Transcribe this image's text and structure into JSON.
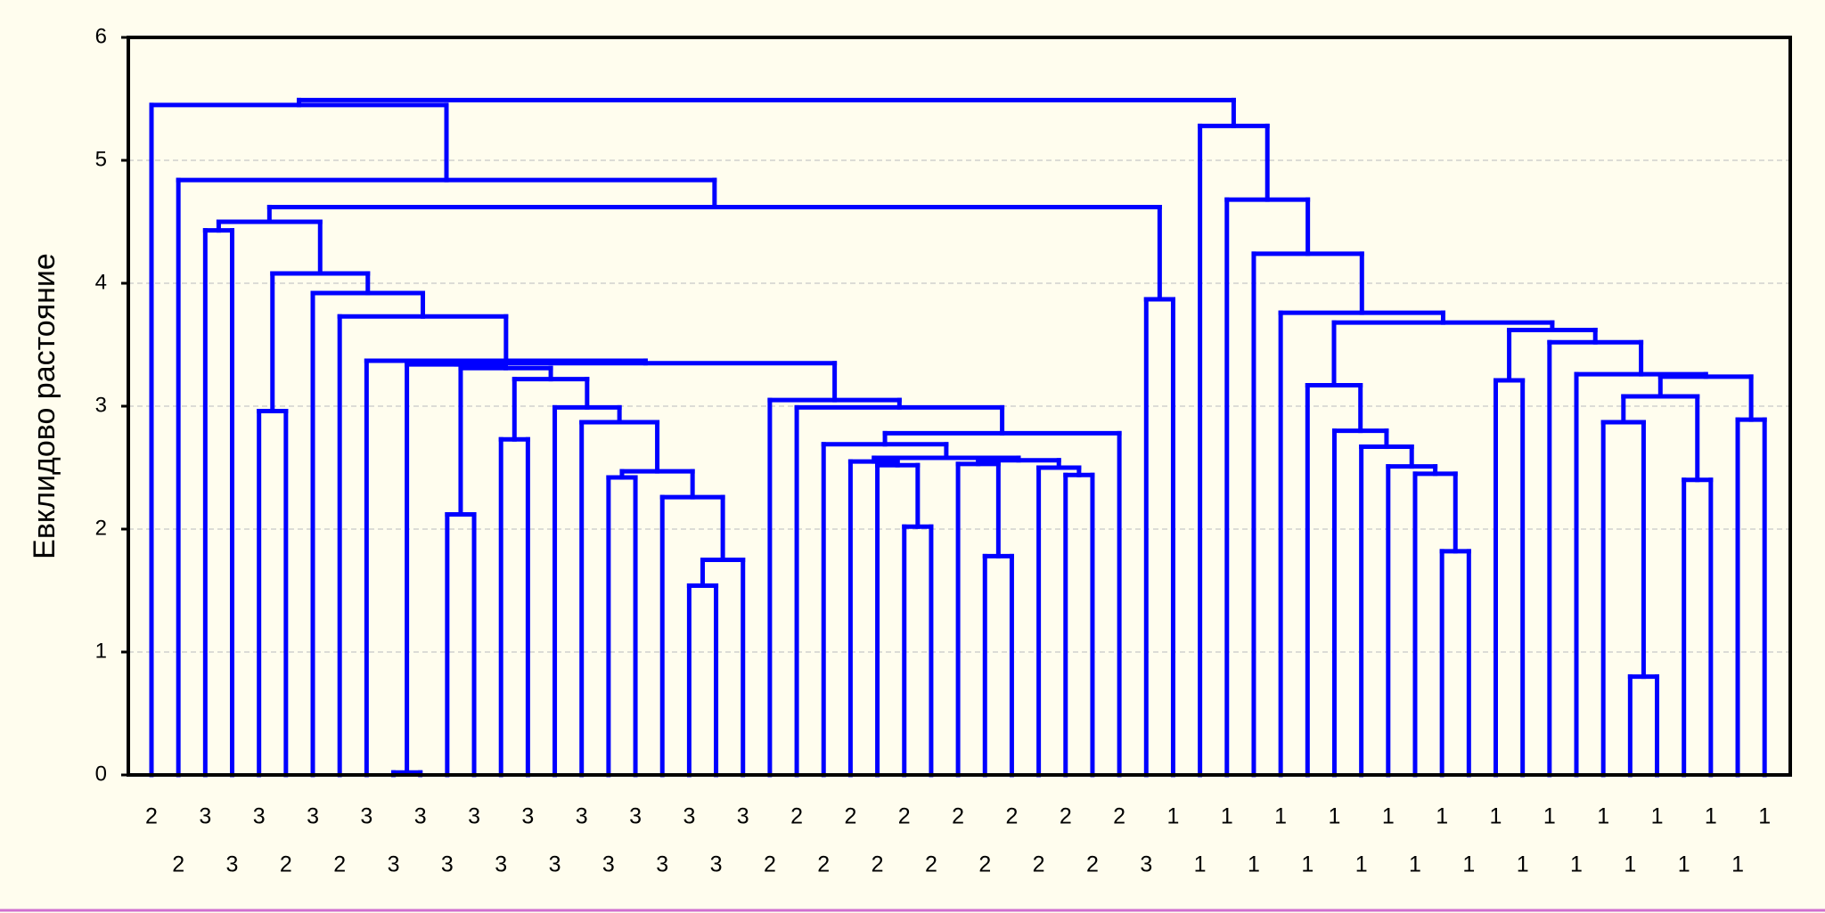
{
  "chart_data": {
    "type": "dendrogram",
    "ylabel": "Евклидово растояние",
    "color": "#0000ff",
    "ylim": [
      0,
      6
    ],
    "yticks": [
      0,
      1,
      2,
      3,
      4,
      5,
      6
    ],
    "grid": true,
    "tree": {
      "h": 5.49,
      "children": [
        {
          "h": 5.45,
          "children": [
            2,
            {
              "h": 4.84,
              "children": [
                2,
                {
                  "h": 4.62,
                  "children": [
                    {
                      "h": 4.5,
                      "children": [
                        {
                          "h": 4.43,
                          "children": [
                            3,
                            3
                          ]
                        },
                        {
                          "h": 4.08,
                          "children": [
                            {
                              "h": 2.96,
                              "children": [
                                3,
                                2
                              ]
                            },
                            {
                              "h": 3.92,
                              "children": [
                                3,
                                {
                                  "h": 3.73,
                                  "children": [
                                    2,
                                    {
                                      "h": 3.37,
                                      "children": [
                                        3,
                                        {
                                          "h": 3.35,
                                          "children": [
                                            {
                                              "h": 3.34,
                                              "children": [
                                                {
                                                  "h": 0.02,
                                                  "children": [
                                                    3,
                                                    3
                                                  ]
                                                },
                                                {
                                                  "h": 3.31,
                                                  "children": [
                                                    {
                                                      "h": 2.12,
                                                      "children": [
                                                        3,
                                                        3
                                                      ]
                                                    },
                                                    {
                                                      "h": 3.22,
                                                      "children": [
                                                        {
                                                          "h": 2.73,
                                                          "children": [
                                                            3,
                                                            3
                                                          ]
                                                        },
                                                        {
                                                          "h": 2.99,
                                                          "children": [
                                                            3,
                                                            {
                                                              "h": 2.87,
                                                              "children": [
                                                                3,
                                                                {
                                                                  "h": 2.47,
                                                                  "children": [
                                                                    {
                                                                      "h": 2.42,
                                                                      "children": [
                                                                        3,
                                                                        3
                                                                      ]
                                                                    },
                                                                    {
                                                                      "h": 2.26,
                                                                      "children": [
                                                                        3,
                                                                        {
                                                                          "h": 1.75,
                                                                          "children": [
                                                                            {
                                                                              "h": 1.54,
                                                                              "children": [
                                                                                3,
                                                                                3
                                                                              ]
                                                                            },
                                                                            3
                                                                          ]
                                                                        }
                                                                      ]
                                                                    }
                                                                  ]
                                                                }
                                                              ]
                                                            }
                                                          ]
                                                        }
                                                      ]
                                                    }
                                                  ]
                                                }
                                              ]
                                            },
                                            {
                                              "h": 3.05,
                                              "children": [
                                                2,
                                                {
                                                  "h": 2.99,
                                                  "children": [
                                                    2,
                                                    {
                                                      "h": 2.78,
                                                      "children": [
                                                        {
                                                          "h": 2.69,
                                                          "children": [
                                                            2,
                                                            {
                                                              "h": 2.58,
                                                              "children": [
                                                                {
                                                                  "h": 2.55,
                                                                  "children": [
                                                                    2,
                                                                    {
                                                                      "h": 2.52,
                                                                      "children": [
                                                                        2,
                                                                        {
                                                                          "h": 2.02,
                                                                          "children": [
                                                                            2,
                                                                            2
                                                                          ]
                                                                        }
                                                                      ]
                                                                    }
                                                                  ]
                                                                },
                                                                {
                                                                  "h": 2.56,
                                                                  "children": [
                                                                    {
                                                                      "h": 2.53,
                                                                      "children": [
                                                                        2,
                                                                        {
                                                                          "h": 1.78,
                                                                          "children": [
                                                                            2,
                                                                            2
                                                                          ]
                                                                        }
                                                                      ]
                                                                    },
                                                                    {
                                                                      "h": 2.5,
                                                                      "children": [
                                                                        2,
                                                                        {
                                                                          "h": 2.44,
                                                                          "children": [
                                                                            2,
                                                                            2
                                                                          ]
                                                                        }
                                                                      ]
                                                                    }
                                                                  ]
                                                                }
                                                              ]
                                                            }
                                                          ]
                                                        },
                                                        2
                                                      ]
                                                    }
                                                  ]
                                                }
                                              ]
                                            }
                                          ]
                                        }
                                      ]
                                    }
                                  ]
                                }
                              ]
                            }
                          ]
                        }
                      ]
                    },
                    {
                      "h": 3.87,
                      "children": [
                        3,
                        1
                      ]
                    }
                  ]
                }
              ]
            }
          ]
        },
        {
          "h": 5.28,
          "children": [
            1,
            {
              "h": 4.68,
              "children": [
                1,
                {
                  "h": 4.24,
                  "children": [
                    1,
                    {
                      "h": 3.76,
                      "children": [
                        1,
                        {
                          "h": 3.68,
                          "children": [
                            {
                              "h": 3.17,
                              "children": [
                                1,
                                {
                                  "h": 2.8,
                                  "children": [
                                    1,
                                    {
                                      "h": 2.67,
                                      "children": [
                                        1,
                                        {
                                          "h": 2.51,
                                          "children": [
                                            1,
                                            {
                                              "h": 2.45,
                                              "children": [
                                                1,
                                                {
                                                  "h": 1.82,
                                                  "children": [
                                                    1,
                                                    1
                                                  ]
                                                }
                                              ]
                                            }
                                          ]
                                        }
                                      ]
                                    }
                                  ]
                                }
                              ]
                            },
                            {
                              "h": 3.62,
                              "children": [
                                {
                                  "h": 3.21,
                                  "children": [
                                    1,
                                    1
                                  ]
                                },
                                {
                                  "h": 3.52,
                                  "children": [
                                    1,
                                    {
                                      "h": 3.26,
                                      "children": [
                                        1,
                                        {
                                          "h": 3.24,
                                          "children": [
                                            {
                                              "h": 3.08,
                                              "children": [
                                                {
                                                  "h": 2.87,
                                                  "children": [
                                                    1,
                                                    {
                                                      "h": 0.8,
                                                      "children": [
                                                        1,
                                                        1
                                                      ]
                                                    }
                                                  ]
                                                },
                                                {
                                                  "h": 2.4,
                                                  "children": [
                                                    1,
                                                    1
                                                  ]
                                                }
                                              ]
                                            },
                                            {
                                              "h": 2.89,
                                              "children": [
                                                1,
                                                1
                                              ]
                                            }
                                          ]
                                        }
                                      ]
                                    }
                                  ]
                                }
                              ]
                            }
                          ]
                        }
                      ]
                    }
                  ]
                }
              ]
            }
          ]
        }
      ]
    }
  }
}
